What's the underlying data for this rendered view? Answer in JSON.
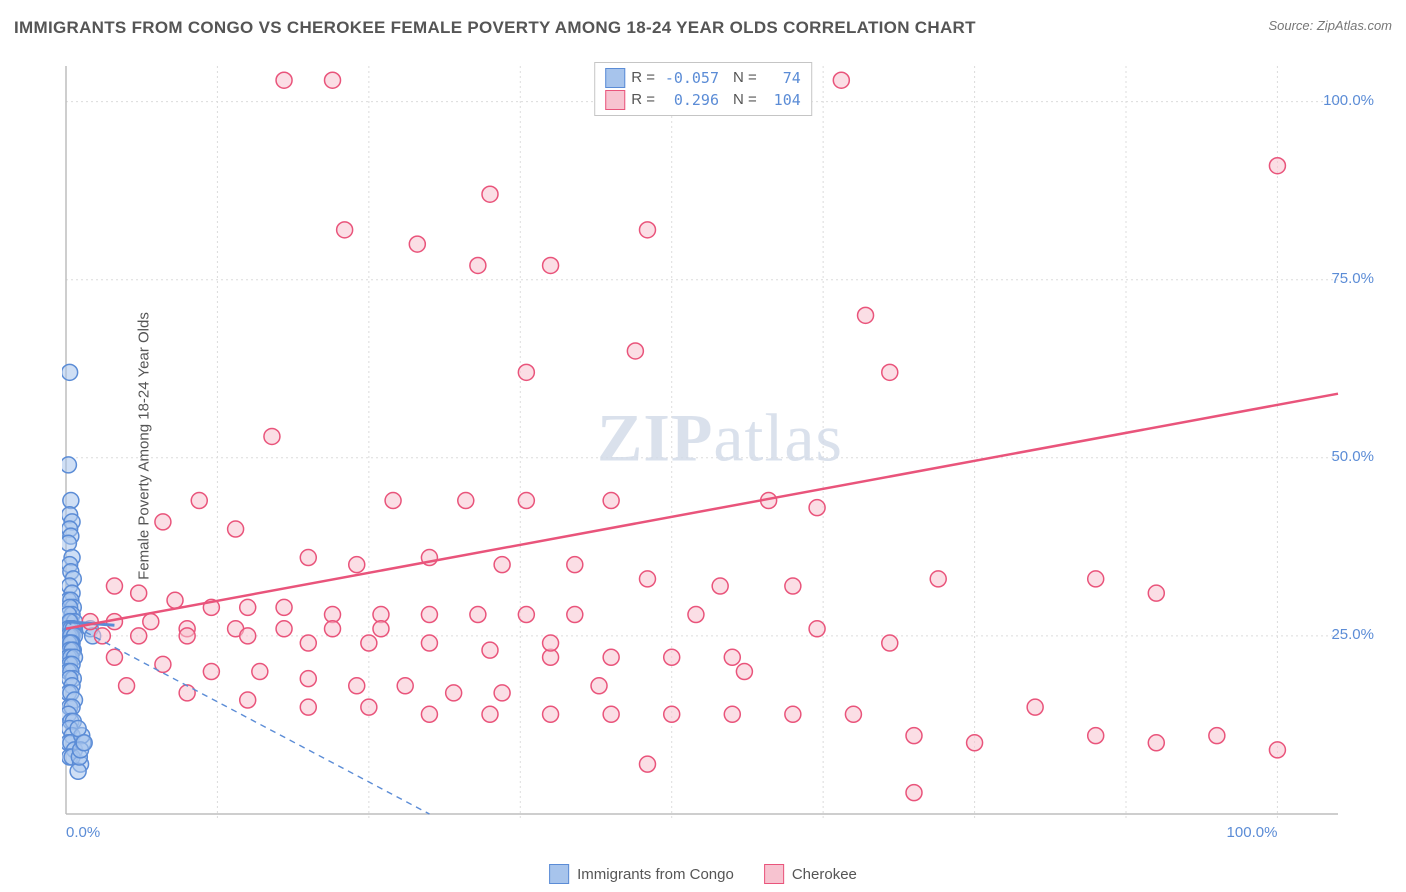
{
  "title": "IMMIGRANTS FROM CONGO VS CHEROKEE FEMALE POVERTY AMONG 18-24 YEAR OLDS CORRELATION CHART",
  "source": "Source: ZipAtlas.com",
  "y_axis_label": "Female Poverty Among 18-24 Year Olds",
  "watermark": {
    "part1": "ZIP",
    "part2": "atlas"
  },
  "chart": {
    "type": "scatter",
    "xlim": [
      0,
      105
    ],
    "ylim": [
      0,
      105
    ],
    "x_ticks": [
      0,
      100
    ],
    "x_tick_labels": [
      "0.0%",
      "100.0%"
    ],
    "y_ticks": [
      25,
      50,
      75,
      100
    ],
    "y_tick_labels": [
      "25.0%",
      "50.0%",
      "75.0%",
      "100.0%"
    ],
    "grid_color": "#dcdcdc",
    "grid_xstep": 12.5,
    "background_color": "#ffffff",
    "axis_color": "#bdbdbd",
    "marker_radius": 8,
    "marker_stroke_width": 1.5
  },
  "series": [
    {
      "name": "Immigrants from Congo",
      "color_fill": "#a7c4ec",
      "color_stroke": "#5b8cd6",
      "fill_opacity": 0.55,
      "R": "-0.057",
      "N": "74",
      "trend": {
        "x1": 0,
        "y1": 27,
        "x2": 30,
        "y2": 0,
        "dashed": true,
        "width": 1.4
      },
      "trend_solid": {
        "x1": 0,
        "y1": 27,
        "x2": 4,
        "y2": 26.5,
        "width": 3
      },
      "points": [
        [
          0.3,
          62
        ],
        [
          0.2,
          49
        ],
        [
          0.4,
          44
        ],
        [
          0.3,
          42
        ],
        [
          0.5,
          41
        ],
        [
          0.3,
          40
        ],
        [
          0.4,
          39
        ],
        [
          0.2,
          38
        ],
        [
          0.5,
          36
        ],
        [
          0.3,
          35
        ],
        [
          0.4,
          34
        ],
        [
          0.6,
          33
        ],
        [
          0.3,
          32
        ],
        [
          0.5,
          31
        ],
        [
          0.2,
          30
        ],
        [
          0.4,
          30
        ],
        [
          0.6,
          29
        ],
        [
          0.3,
          29
        ],
        [
          0.5,
          28
        ],
        [
          0.2,
          28
        ],
        [
          0.4,
          27
        ],
        [
          0.7,
          27
        ],
        [
          0.3,
          27
        ],
        [
          0.5,
          26
        ],
        [
          0.2,
          26
        ],
        [
          0.4,
          26
        ],
        [
          0.6,
          26
        ],
        [
          0.3,
          25
        ],
        [
          0.5,
          25
        ],
        [
          0.2,
          25
        ],
        [
          0.4,
          25
        ],
        [
          0.7,
          25
        ],
        [
          0.3,
          24
        ],
        [
          0.5,
          24
        ],
        [
          0.2,
          24
        ],
        [
          0.4,
          24
        ],
        [
          0.6,
          23
        ],
        [
          0.3,
          23
        ],
        [
          0.5,
          23
        ],
        [
          0.2,
          22
        ],
        [
          0.4,
          22
        ],
        [
          0.7,
          22
        ],
        [
          0.3,
          21
        ],
        [
          0.5,
          21
        ],
        [
          0.2,
          20
        ],
        [
          0.4,
          20
        ],
        [
          0.6,
          19
        ],
        [
          0.3,
          19
        ],
        [
          0.5,
          18
        ],
        [
          0.2,
          17
        ],
        [
          0.4,
          17
        ],
        [
          0.7,
          16
        ],
        [
          0.3,
          15
        ],
        [
          0.5,
          15
        ],
        [
          0.2,
          14
        ],
        [
          0.4,
          13
        ],
        [
          0.6,
          13
        ],
        [
          0.3,
          12
        ],
        [
          0.5,
          11
        ],
        [
          0.2,
          10
        ],
        [
          0.4,
          10
        ],
        [
          0.7,
          9
        ],
        [
          0.3,
          8
        ],
        [
          0.5,
          8
        ],
        [
          1.2,
          7
        ],
        [
          1.0,
          6
        ],
        [
          1.4,
          10
        ],
        [
          1.1,
          8
        ],
        [
          1.3,
          11
        ],
        [
          1.0,
          12
        ],
        [
          1.2,
          9
        ],
        [
          1.5,
          10
        ],
        [
          2.0,
          26
        ],
        [
          2.2,
          25
        ]
      ]
    },
    {
      "name": "Cherokee",
      "color_fill": "#f7c3d0",
      "color_stroke": "#e9547b",
      "fill_opacity": 0.55,
      "R": "0.296",
      "N": "104",
      "trend": {
        "x1": 0,
        "y1": 26,
        "x2": 105,
        "y2": 59,
        "dashed": false,
        "width": 2.5
      },
      "points": [
        [
          64,
          103
        ],
        [
          100,
          91
        ],
        [
          35,
          87
        ],
        [
          23,
          82
        ],
        [
          48,
          82
        ],
        [
          29,
          80
        ],
        [
          40,
          77
        ],
        [
          34,
          77
        ],
        [
          66,
          70
        ],
        [
          47,
          65
        ],
        [
          38,
          62
        ],
        [
          68,
          62
        ],
        [
          17,
          53
        ],
        [
          27,
          44
        ],
        [
          33,
          44
        ],
        [
          38,
          44
        ],
        [
          45,
          44
        ],
        [
          58,
          44
        ],
        [
          62,
          43
        ],
        [
          11,
          44
        ],
        [
          8,
          41
        ],
        [
          14,
          40
        ],
        [
          20,
          36
        ],
        [
          24,
          35
        ],
        [
          30,
          36
        ],
        [
          36,
          35
        ],
        [
          42,
          35
        ],
        [
          48,
          33
        ],
        [
          54,
          32
        ],
        [
          60,
          32
        ],
        [
          72,
          33
        ],
        [
          85,
          33
        ],
        [
          90,
          31
        ],
        [
          4,
          32
        ],
        [
          6,
          31
        ],
        [
          9,
          30
        ],
        [
          12,
          29
        ],
        [
          15,
          29
        ],
        [
          18,
          29
        ],
        [
          22,
          28
        ],
        [
          26,
          28
        ],
        [
          30,
          28
        ],
        [
          34,
          28
        ],
        [
          38,
          28
        ],
        [
          42,
          28
        ],
        [
          2,
          27
        ],
        [
          4,
          27
        ],
        [
          7,
          27
        ],
        [
          10,
          26
        ],
        [
          14,
          26
        ],
        [
          18,
          26
        ],
        [
          22,
          26
        ],
        [
          26,
          26
        ],
        [
          3,
          25
        ],
        [
          6,
          25
        ],
        [
          10,
          25
        ],
        [
          15,
          25
        ],
        [
          20,
          24
        ],
        [
          25,
          24
        ],
        [
          30,
          24
        ],
        [
          35,
          23
        ],
        [
          40,
          22
        ],
        [
          45,
          22
        ],
        [
          50,
          22
        ],
        [
          55,
          22
        ],
        [
          4,
          22
        ],
        [
          8,
          21
        ],
        [
          12,
          20
        ],
        [
          16,
          20
        ],
        [
          20,
          19
        ],
        [
          24,
          18
        ],
        [
          28,
          18
        ],
        [
          32,
          17
        ],
        [
          36,
          17
        ],
        [
          5,
          18
        ],
        [
          10,
          17
        ],
        [
          15,
          16
        ],
        [
          20,
          15
        ],
        [
          25,
          15
        ],
        [
          30,
          14
        ],
        [
          35,
          14
        ],
        [
          40,
          14
        ],
        [
          45,
          14
        ],
        [
          50,
          14
        ],
        [
          55,
          14
        ],
        [
          60,
          14
        ],
        [
          65,
          14
        ],
        [
          70,
          11
        ],
        [
          75,
          10
        ],
        [
          80,
          15
        ],
        [
          85,
          11
        ],
        [
          90,
          10
        ],
        [
          95,
          11
        ],
        [
          100,
          9
        ],
        [
          70,
          3
        ],
        [
          48,
          7
        ],
        [
          40,
          24
        ],
        [
          44,
          18
        ],
        [
          52,
          28
        ],
        [
          56,
          20
        ],
        [
          62,
          26
        ],
        [
          68,
          24
        ],
        [
          18,
          103
        ],
        [
          22,
          103
        ]
      ]
    }
  ],
  "legend_top": {
    "r_label": "R =",
    "n_label": "N ="
  },
  "legend_bottom": {
    "items": [
      "Immigrants from Congo",
      "Cherokee"
    ]
  }
}
